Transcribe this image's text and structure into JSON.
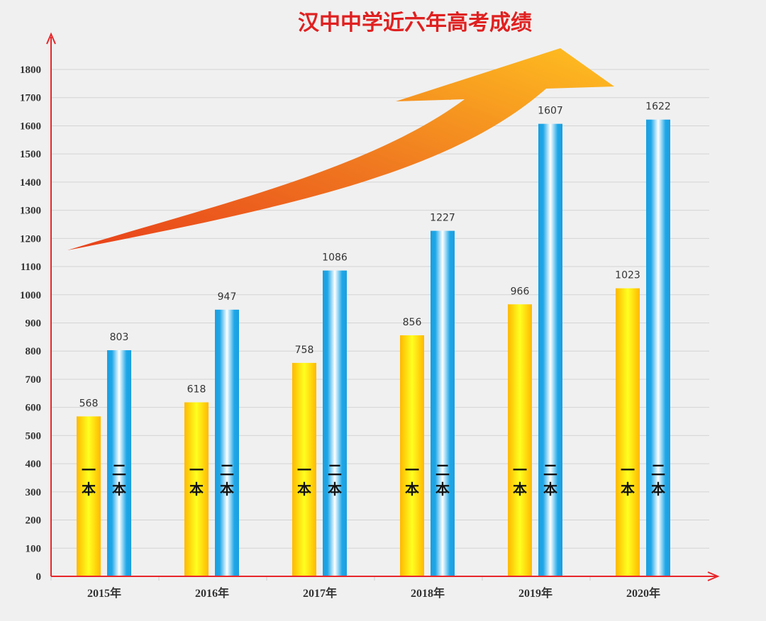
{
  "chart_data": {
    "type": "bar",
    "title": "汉中中学近六年高考成绩",
    "categories": [
      "2015年",
      "2016年",
      "2017年",
      "2018年",
      "2019年",
      "2020年"
    ],
    "series": [
      {
        "name": "一本",
        "values": [
          568,
          618,
          758,
          856,
          966,
          1023
        ],
        "color": "#ffc000"
      },
      {
        "name": "二本",
        "values": [
          803,
          947,
          1086,
          1227,
          1607,
          1622
        ],
        "color": "#1ea7e8"
      }
    ],
    "ylim": [
      0,
      1800
    ],
    "yticks": [
      0,
      100,
      200,
      300,
      400,
      500,
      600,
      700,
      800,
      900,
      1000,
      1100,
      1200,
      1300,
      1400,
      1500,
      1600,
      1700,
      1800
    ],
    "grid": true,
    "axis_color": "#e8262a",
    "decoration": "orange upward arrow"
  }
}
